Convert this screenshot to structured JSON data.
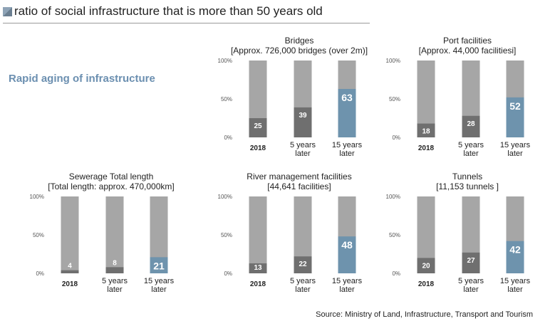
{
  "header": {
    "title": "ratio of social infrastructure that is more than 50 years old",
    "icon": "square-gradient-icon"
  },
  "subtitle": "Rapid aging of infrastructure",
  "source": "Source: Ministry of Land, Infrastructure, Transport and Tourism",
  "colors": {
    "background_bar": "#a6a6a6",
    "past_value": "#6f6f6f",
    "future_value": "#6e93ad",
    "subtitle": "#6b8fb0"
  },
  "chart_data": [
    {
      "type": "bar",
      "title": "Bridges",
      "subtitle": "[Approx. 726,000 bridges (over 2m)]",
      "categories": [
        "2018",
        "5 years later",
        "15 years later"
      ],
      "values": [
        25,
        39,
        63
      ],
      "ylim": [
        0,
        100
      ],
      "yticks": [
        "0%",
        "50%",
        "100%"
      ],
      "stacked_to_100": true
    },
    {
      "type": "bar",
      "title": "Port facilities",
      "subtitle": "[Approx. 44,000 facilitiesi]",
      "categories": [
        "2018",
        "5 years later",
        "15 years later"
      ],
      "values": [
        18,
        28,
        52
      ],
      "ylim": [
        0,
        100
      ],
      "yticks": [
        "0%",
        "50%",
        "100%"
      ],
      "stacked_to_100": true
    },
    {
      "type": "bar",
      "title": "Sewerage Total length",
      "subtitle": "[Total length: approx. 470,000km]",
      "categories": [
        "2018",
        "5 years later",
        "15 years later"
      ],
      "values": [
        4,
        8,
        21
      ],
      "ylim": [
        0,
        100
      ],
      "yticks": [
        "0%",
        "50%",
        "100%"
      ],
      "stacked_to_100": true
    },
    {
      "type": "bar",
      "title": "River management facilities",
      "subtitle": "[44,641 facilities]",
      "categories": [
        "2018",
        "5 years later",
        "15 years later"
      ],
      "values": [
        13,
        22,
        48
      ],
      "ylim": [
        0,
        100
      ],
      "yticks": [
        "0%",
        "50%",
        "100%"
      ],
      "stacked_to_100": true
    },
    {
      "type": "bar",
      "title": "Tunnels",
      "subtitle": "[11,153 tunnels ]",
      "categories": [
        "2018",
        "5 years later",
        "15 years later"
      ],
      "values": [
        20,
        27,
        42
      ],
      "ylim": [
        0,
        100
      ],
      "yticks": [
        "0%",
        "50%",
        "100%"
      ],
      "stacked_to_100": true
    }
  ]
}
